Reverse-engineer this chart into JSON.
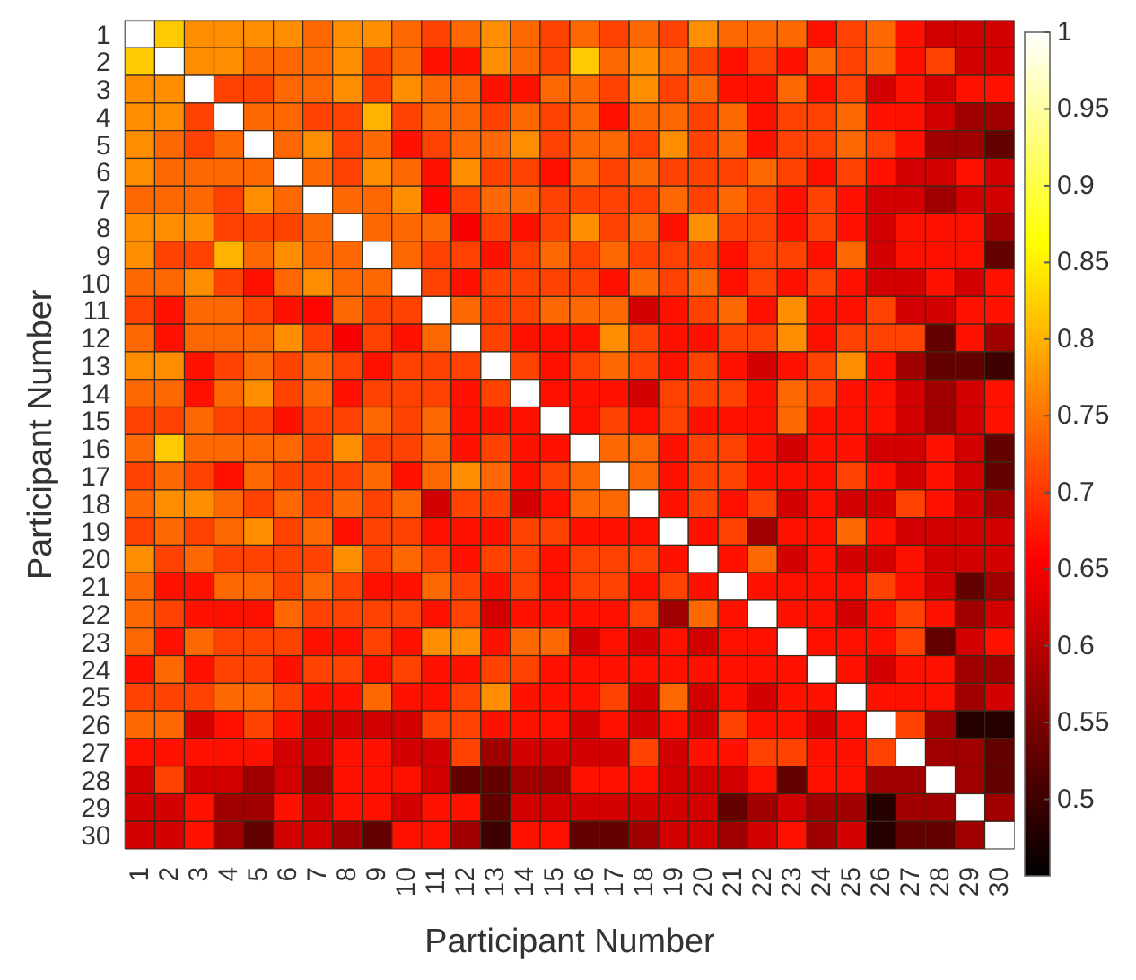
{
  "chart_data": {
    "type": "heatmap",
    "xlabel": "Participant Number",
    "ylabel": "Participant Number",
    "categories": [
      "1",
      "2",
      "3",
      "4",
      "5",
      "6",
      "7",
      "8",
      "9",
      "10",
      "11",
      "12",
      "13",
      "14",
      "15",
      "16",
      "17",
      "18",
      "19",
      "20",
      "21",
      "22",
      "23",
      "24",
      "25",
      "26",
      "27",
      "28",
      "29",
      "30"
    ],
    "y_categories": [
      "1",
      "2",
      "3",
      "4",
      "5",
      "6",
      "7",
      "8",
      "9",
      "10",
      "11",
      "12",
      "13",
      "14",
      "15",
      "16",
      "17",
      "18",
      "19",
      "20",
      "21",
      "22",
      "23",
      "24",
      "25",
      "26",
      "27",
      "28",
      "29",
      "30"
    ],
    "clim": [
      0.45,
      1
    ],
    "cticks": [
      0.5,
      0.55,
      0.6,
      0.65,
      0.7,
      0.75,
      0.8,
      0.85,
      0.9,
      0.95,
      1
    ],
    "cells": [
      [
        1,
        0.82,
        0.77,
        0.77,
        0.77,
        0.77,
        0.74,
        0.77,
        0.77,
        0.74,
        0.71,
        0.74,
        0.77,
        0.74,
        0.71,
        0.74,
        0.71,
        0.74,
        0.71,
        0.77,
        0.74,
        0.74,
        0.74,
        0.67,
        0.71,
        0.74,
        0.67,
        0.62,
        0.62,
        0.62
      ],
      [
        0.82,
        1,
        0.77,
        0.77,
        0.74,
        0.74,
        0.74,
        0.77,
        0.71,
        0.74,
        0.67,
        0.67,
        0.77,
        0.74,
        0.71,
        0.82,
        0.74,
        0.77,
        0.74,
        0.71,
        0.67,
        0.71,
        0.67,
        0.74,
        0.71,
        0.74,
        0.67,
        0.71,
        0.62,
        0.62
      ],
      [
        0.77,
        0.77,
        1,
        0.71,
        0.71,
        0.74,
        0.74,
        0.77,
        0.71,
        0.77,
        0.74,
        0.74,
        0.67,
        0.67,
        0.74,
        0.74,
        0.71,
        0.77,
        0.71,
        0.74,
        0.67,
        0.67,
        0.74,
        0.67,
        0.71,
        0.62,
        0.67,
        0.62,
        0.67,
        0.67
      ],
      [
        0.77,
        0.77,
        0.71,
        1,
        0.74,
        0.74,
        0.71,
        0.71,
        0.8,
        0.71,
        0.74,
        0.74,
        0.71,
        0.74,
        0.71,
        0.74,
        0.67,
        0.74,
        0.74,
        0.71,
        0.74,
        0.67,
        0.71,
        0.71,
        0.74,
        0.67,
        0.67,
        0.62,
        0.58,
        0.58
      ],
      [
        0.77,
        0.74,
        0.71,
        0.74,
        1,
        0.74,
        0.77,
        0.71,
        0.74,
        0.67,
        0.71,
        0.74,
        0.74,
        0.77,
        0.71,
        0.74,
        0.74,
        0.71,
        0.77,
        0.71,
        0.74,
        0.67,
        0.71,
        0.71,
        0.74,
        0.71,
        0.67,
        0.58,
        0.58,
        0.53
      ],
      [
        0.77,
        0.74,
        0.74,
        0.74,
        0.74,
        1,
        0.74,
        0.71,
        0.77,
        0.74,
        0.67,
        0.77,
        0.71,
        0.71,
        0.67,
        0.74,
        0.71,
        0.74,
        0.71,
        0.71,
        0.71,
        0.74,
        0.71,
        0.67,
        0.71,
        0.67,
        0.62,
        0.62,
        0.67,
        0.62
      ],
      [
        0.74,
        0.74,
        0.74,
        0.71,
        0.77,
        0.74,
        1,
        0.74,
        0.74,
        0.77,
        0.66,
        0.71,
        0.74,
        0.74,
        0.71,
        0.71,
        0.71,
        0.71,
        0.74,
        0.71,
        0.74,
        0.71,
        0.67,
        0.71,
        0.67,
        0.62,
        0.62,
        0.58,
        0.62,
        0.62
      ],
      [
        0.77,
        0.77,
        0.77,
        0.71,
        0.71,
        0.71,
        0.74,
        1,
        0.74,
        0.74,
        0.74,
        0.65,
        0.71,
        0.67,
        0.71,
        0.77,
        0.71,
        0.74,
        0.67,
        0.77,
        0.71,
        0.71,
        0.67,
        0.71,
        0.67,
        0.62,
        0.67,
        0.67,
        0.67,
        0.58
      ],
      [
        0.77,
        0.71,
        0.71,
        0.8,
        0.74,
        0.77,
        0.74,
        0.74,
        1,
        0.74,
        0.71,
        0.71,
        0.67,
        0.71,
        0.74,
        0.71,
        0.74,
        0.71,
        0.71,
        0.71,
        0.67,
        0.71,
        0.71,
        0.67,
        0.74,
        0.62,
        0.67,
        0.67,
        0.67,
        0.53
      ],
      [
        0.74,
        0.74,
        0.77,
        0.71,
        0.67,
        0.74,
        0.77,
        0.74,
        0.74,
        1,
        0.71,
        0.67,
        0.71,
        0.71,
        0.71,
        0.71,
        0.67,
        0.74,
        0.71,
        0.74,
        0.67,
        0.71,
        0.67,
        0.71,
        0.67,
        0.62,
        0.62,
        0.67,
        0.62,
        0.67
      ],
      [
        0.71,
        0.67,
        0.74,
        0.74,
        0.71,
        0.67,
        0.66,
        0.74,
        0.71,
        0.71,
        1,
        0.74,
        0.71,
        0.71,
        0.74,
        0.74,
        0.74,
        0.62,
        0.67,
        0.71,
        0.74,
        0.67,
        0.77,
        0.67,
        0.67,
        0.71,
        0.62,
        0.62,
        0.67,
        0.67
      ],
      [
        0.74,
        0.67,
        0.74,
        0.74,
        0.74,
        0.77,
        0.71,
        0.65,
        0.71,
        0.67,
        0.74,
        1,
        0.71,
        0.67,
        0.67,
        0.67,
        0.77,
        0.71,
        0.67,
        0.67,
        0.71,
        0.71,
        0.77,
        0.67,
        0.71,
        0.71,
        0.71,
        0.53,
        0.67,
        0.58
      ],
      [
        0.77,
        0.77,
        0.67,
        0.71,
        0.74,
        0.71,
        0.74,
        0.71,
        0.67,
        0.71,
        0.71,
        0.71,
        1,
        0.71,
        0.67,
        0.71,
        0.74,
        0.71,
        0.67,
        0.71,
        0.67,
        0.62,
        0.67,
        0.71,
        0.77,
        0.67,
        0.58,
        0.53,
        0.53,
        0.5
      ],
      [
        0.74,
        0.74,
        0.67,
        0.74,
        0.77,
        0.71,
        0.74,
        0.67,
        0.71,
        0.71,
        0.71,
        0.67,
        0.71,
        1,
        0.67,
        0.67,
        0.67,
        0.62,
        0.71,
        0.71,
        0.71,
        0.67,
        0.74,
        0.71,
        0.67,
        0.67,
        0.62,
        0.58,
        0.62,
        0.67
      ],
      [
        0.71,
        0.71,
        0.74,
        0.71,
        0.71,
        0.67,
        0.71,
        0.71,
        0.74,
        0.71,
        0.74,
        0.67,
        0.67,
        0.67,
        1,
        0.67,
        0.71,
        0.67,
        0.71,
        0.67,
        0.67,
        0.67,
        0.74,
        0.67,
        0.67,
        0.67,
        0.62,
        0.58,
        0.62,
        0.67
      ],
      [
        0.74,
        0.82,
        0.74,
        0.74,
        0.74,
        0.74,
        0.71,
        0.77,
        0.71,
        0.71,
        0.74,
        0.67,
        0.71,
        0.67,
        0.67,
        1,
        0.74,
        0.74,
        0.67,
        0.71,
        0.71,
        0.67,
        0.62,
        0.67,
        0.67,
        0.62,
        0.62,
        0.67,
        0.62,
        0.53
      ],
      [
        0.71,
        0.74,
        0.71,
        0.67,
        0.74,
        0.71,
        0.71,
        0.71,
        0.74,
        0.67,
        0.74,
        0.77,
        0.74,
        0.67,
        0.71,
        0.74,
        1,
        0.74,
        0.67,
        0.71,
        0.71,
        0.67,
        0.67,
        0.67,
        0.71,
        0.67,
        0.62,
        0.67,
        0.62,
        0.53
      ],
      [
        0.74,
        0.77,
        0.77,
        0.74,
        0.71,
        0.74,
        0.71,
        0.74,
        0.71,
        0.74,
        0.62,
        0.71,
        0.71,
        0.62,
        0.67,
        0.74,
        0.74,
        1,
        0.67,
        0.71,
        0.67,
        0.71,
        0.62,
        0.67,
        0.62,
        0.62,
        0.71,
        0.67,
        0.62,
        0.58
      ],
      [
        0.71,
        0.74,
        0.71,
        0.74,
        0.77,
        0.71,
        0.74,
        0.67,
        0.71,
        0.71,
        0.67,
        0.67,
        0.67,
        0.71,
        0.71,
        0.67,
        0.67,
        0.67,
        1,
        0.67,
        0.71,
        0.58,
        0.67,
        0.67,
        0.74,
        0.67,
        0.62,
        0.62,
        0.62,
        0.62
      ],
      [
        0.77,
        0.71,
        0.74,
        0.71,
        0.71,
        0.71,
        0.71,
        0.77,
        0.71,
        0.74,
        0.71,
        0.67,
        0.71,
        0.71,
        0.67,
        0.71,
        0.71,
        0.71,
        0.67,
        1,
        0.67,
        0.74,
        0.62,
        0.67,
        0.62,
        0.62,
        0.67,
        0.62,
        0.62,
        0.62
      ],
      [
        0.74,
        0.67,
        0.67,
        0.74,
        0.74,
        0.71,
        0.74,
        0.71,
        0.67,
        0.67,
        0.74,
        0.71,
        0.67,
        0.71,
        0.67,
        0.71,
        0.71,
        0.67,
        0.71,
        0.67,
        1,
        0.67,
        0.67,
        0.67,
        0.67,
        0.71,
        0.67,
        0.62,
        0.53,
        0.58
      ],
      [
        0.74,
        0.71,
        0.67,
        0.67,
        0.67,
        0.74,
        0.71,
        0.71,
        0.71,
        0.71,
        0.67,
        0.71,
        0.62,
        0.67,
        0.67,
        0.67,
        0.67,
        0.71,
        0.58,
        0.74,
        0.67,
        1,
        0.67,
        0.67,
        0.62,
        0.67,
        0.71,
        0.67,
        0.58,
        0.62
      ],
      [
        0.74,
        0.67,
        0.74,
        0.71,
        0.71,
        0.71,
        0.67,
        0.67,
        0.71,
        0.67,
        0.77,
        0.77,
        0.67,
        0.74,
        0.74,
        0.62,
        0.67,
        0.62,
        0.67,
        0.62,
        0.67,
        0.67,
        1,
        0.67,
        0.67,
        0.67,
        0.71,
        0.53,
        0.62,
        0.67
      ],
      [
        0.67,
        0.74,
        0.67,
        0.71,
        0.71,
        0.67,
        0.71,
        0.71,
        0.67,
        0.71,
        0.67,
        0.67,
        0.71,
        0.71,
        0.67,
        0.67,
        0.67,
        0.67,
        0.67,
        0.67,
        0.67,
        0.67,
        0.67,
        1,
        0.67,
        0.62,
        0.67,
        0.67,
        0.58,
        0.58
      ],
      [
        0.71,
        0.71,
        0.71,
        0.74,
        0.74,
        0.71,
        0.67,
        0.67,
        0.74,
        0.67,
        0.67,
        0.71,
        0.77,
        0.67,
        0.67,
        0.67,
        0.71,
        0.62,
        0.74,
        0.62,
        0.67,
        0.62,
        0.67,
        0.67,
        1,
        0.67,
        0.67,
        0.67,
        0.58,
        0.62
      ],
      [
        0.74,
        0.74,
        0.62,
        0.67,
        0.71,
        0.67,
        0.62,
        0.62,
        0.62,
        0.62,
        0.71,
        0.71,
        0.67,
        0.67,
        0.67,
        0.62,
        0.67,
        0.62,
        0.67,
        0.62,
        0.71,
        0.67,
        0.67,
        0.62,
        0.67,
        1,
        0.71,
        0.58,
        0.48,
        0.48
      ],
      [
        0.67,
        0.67,
        0.67,
        0.67,
        0.67,
        0.62,
        0.62,
        0.67,
        0.67,
        0.62,
        0.62,
        0.71,
        0.58,
        0.62,
        0.62,
        0.62,
        0.62,
        0.71,
        0.62,
        0.67,
        0.67,
        0.71,
        0.71,
        0.67,
        0.67,
        0.71,
        1,
        0.58,
        0.58,
        0.53
      ],
      [
        0.62,
        0.71,
        0.62,
        0.62,
        0.58,
        0.62,
        0.58,
        0.67,
        0.67,
        0.67,
        0.62,
        0.53,
        0.53,
        0.58,
        0.58,
        0.67,
        0.67,
        0.67,
        0.62,
        0.62,
        0.62,
        0.67,
        0.53,
        0.67,
        0.67,
        0.58,
        0.58,
        1,
        0.58,
        0.53
      ],
      [
        0.62,
        0.62,
        0.67,
        0.58,
        0.58,
        0.67,
        0.62,
        0.67,
        0.67,
        0.62,
        0.67,
        0.67,
        0.53,
        0.62,
        0.62,
        0.62,
        0.62,
        0.62,
        0.62,
        0.62,
        0.53,
        0.58,
        0.62,
        0.58,
        0.58,
        0.48,
        0.58,
        0.58,
        1,
        0.58
      ],
      [
        0.62,
        0.62,
        0.67,
        0.58,
        0.53,
        0.62,
        0.62,
        0.58,
        0.53,
        0.67,
        0.67,
        0.58,
        0.5,
        0.67,
        0.67,
        0.53,
        0.53,
        0.58,
        0.62,
        0.62,
        0.58,
        0.62,
        0.67,
        0.58,
        0.62,
        0.48,
        0.53,
        0.53,
        0.58,
        1
      ]
    ]
  }
}
